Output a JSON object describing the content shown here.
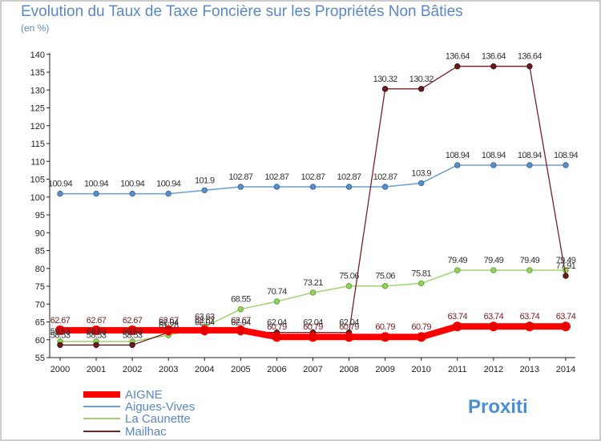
{
  "chart_data": {
    "type": "line",
    "title": "Evolution du Taux de Taxe Foncière sur les Propriétés Non Bâties",
    "ylabel": "(en %)",
    "xlabel": "",
    "categories": [
      "2000",
      "2001",
      "2002",
      "2003",
      "2004",
      "2005",
      "2006",
      "2007",
      "2008",
      "2009",
      "2010",
      "2011",
      "2012",
      "2013",
      "2014"
    ],
    "ylim": [
      55,
      140
    ],
    "yticks": [
      55,
      60,
      65,
      70,
      75,
      80,
      85,
      90,
      95,
      100,
      105,
      110,
      115,
      120,
      125,
      130,
      135,
      140
    ],
    "series": [
      {
        "name": "AIGNE",
        "color": "#ff0000",
        "values": [
          62.67,
          62.67,
          62.67,
          62.67,
          62.67,
          62.67,
          60.79,
          60.79,
          60.79,
          60.79,
          60.79,
          63.74,
          63.74,
          63.74,
          63.74
        ],
        "labels": [
          "62.67",
          "62.67",
          "62.67",
          "62.67",
          "62.67",
          "62.67",
          "60.79",
          "60.79",
          "60.79",
          "60.79",
          "60.79",
          "63.74",
          "63.74",
          "63.74",
          "63.74"
        ]
      },
      {
        "name": "Aigues-Vives",
        "color": "#6a9fd4",
        "values": [
          100.94,
          100.94,
          100.94,
          100.94,
          101.9,
          102.87,
          102.87,
          102.87,
          102.87,
          102.87,
          103.9,
          108.94,
          108.94,
          108.94,
          108.94
        ],
        "labels": [
          "100.94",
          "100.94",
          "100.94",
          "100.94",
          "101.9",
          "102.87",
          "102.87",
          "102.87",
          "102.87",
          "102.87",
          "103.9",
          "108.94",
          "108.94",
          "108.94",
          "108.94"
        ]
      },
      {
        "name": "La Caunette",
        "color": "#9ed56b",
        "values": [
          59.53,
          59.53,
          59.53,
          61.28,
          63.63,
          68.55,
          70.74,
          73.21,
          75.06,
          75.06,
          75.81,
          79.49,
          79.49,
          79.49,
          79.49
        ],
        "labels": [
          "59.53",
          "59.53",
          "59.53",
          "61.28",
          "63.63",
          "68.55",
          "70.74",
          "73.21",
          "75.06",
          "75.06",
          "75.81",
          "79.49",
          "79.49",
          "79.49",
          "79.49"
        ]
      },
      {
        "name": "Mailhac",
        "color": "#7b1f24",
        "values": [
          58.53,
          58.53,
          58.53,
          62.04,
          62.04,
          62.04,
          62.04,
          62.04,
          62.04,
          130.32,
          130.32,
          136.64,
          136.64,
          136.64,
          77.91
        ],
        "labels": [
          "58.53",
          "58.53",
          "58.53",
          "62.04",
          "62.04",
          "62.04",
          "62.04",
          "62.04",
          "62.04",
          "130.32",
          "130.32",
          "136.64",
          "136.64",
          "136.64",
          "77.91"
        ]
      }
    ],
    "grid": false,
    "legend_position": "bottom-left"
  },
  "branding": {
    "logo_text": "Proxiti"
  }
}
